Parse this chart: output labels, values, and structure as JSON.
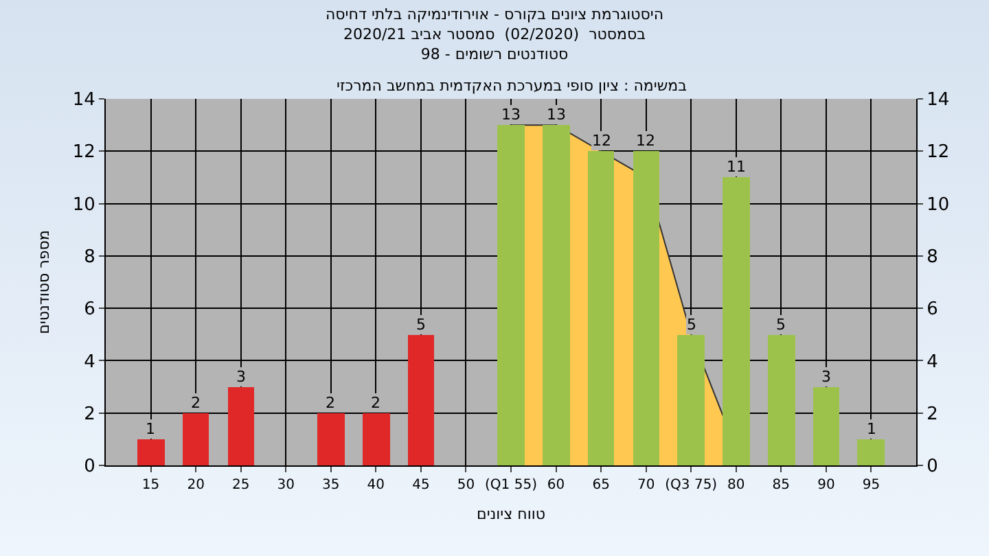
{
  "chart_data": {
    "type": "bar",
    "title": "היסטוגרמת ציונים בקורס - אוירודינמיקה בלתי דחיסה\nבסמסטר  (02/2020)  סמסטר אביב 2020/21\nסטודנטים רשומים - 98",
    "xlabel": "טווח ציונים",
    "ylabel": "מספר סטודנטים",
    "annotations": [
      "במשימה : ציון סופי במערכת האקדמית במחשב המרכזי"
    ],
    "series": [
      {
        "type": "area",
        "color": "#ffc850",
        "x": [
          55,
          60,
          65,
          70,
          75,
          79
        ],
        "values": [
          13,
          13,
          12,
          11,
          5,
          1.5
        ]
      },
      {
        "x": [
          15,
          20,
          25,
          35,
          40,
          45,
          55,
          60,
          65,
          70,
          75,
          80,
          85,
          90,
          95
        ],
        "values": [
          1,
          2,
          3,
          2,
          2,
          5,
          13,
          13,
          12,
          12,
          5,
          11,
          5,
          3,
          1
        ],
        "colors": [
          "#e02828",
          "#e02828",
          "#e02828",
          "#e02828",
          "#e02828",
          "#e02828",
          "#9cc24c",
          "#9cc24c",
          "#9cc24c",
          "#9cc24c",
          "#9cc24c",
          "#9cc24c",
          "#9cc24c",
          "#9cc24c",
          "#9cc24c"
        ],
        "value_labels": [
          "1",
          "2",
          "3",
          "2",
          "2",
          "5",
          "13",
          "13",
          "12",
          "12",
          "5",
          "11",
          "5",
          "3",
          "1"
        ]
      }
    ],
    "xlim": [
      10,
      100
    ],
    "xticks": [
      15,
      20,
      25,
      30,
      35,
      40,
      45,
      50,
      {
        "value": 55,
        "label": "(Q1 55)"
      },
      60,
      65,
      70,
      {
        "value": 75,
        "label": "(Q3 75)"
      },
      80,
      85,
      90,
      95
    ],
    "ylim": [
      0,
      14
    ],
    "yticks": [
      0,
      2,
      4,
      6,
      8,
      10,
      12,
      14
    ],
    "y2lim": [
      0,
      14
    ],
    "y2ticks": [
      0,
      2,
      4,
      6,
      8,
      10,
      12,
      14
    ],
    "grid": true,
    "legend": false
  }
}
